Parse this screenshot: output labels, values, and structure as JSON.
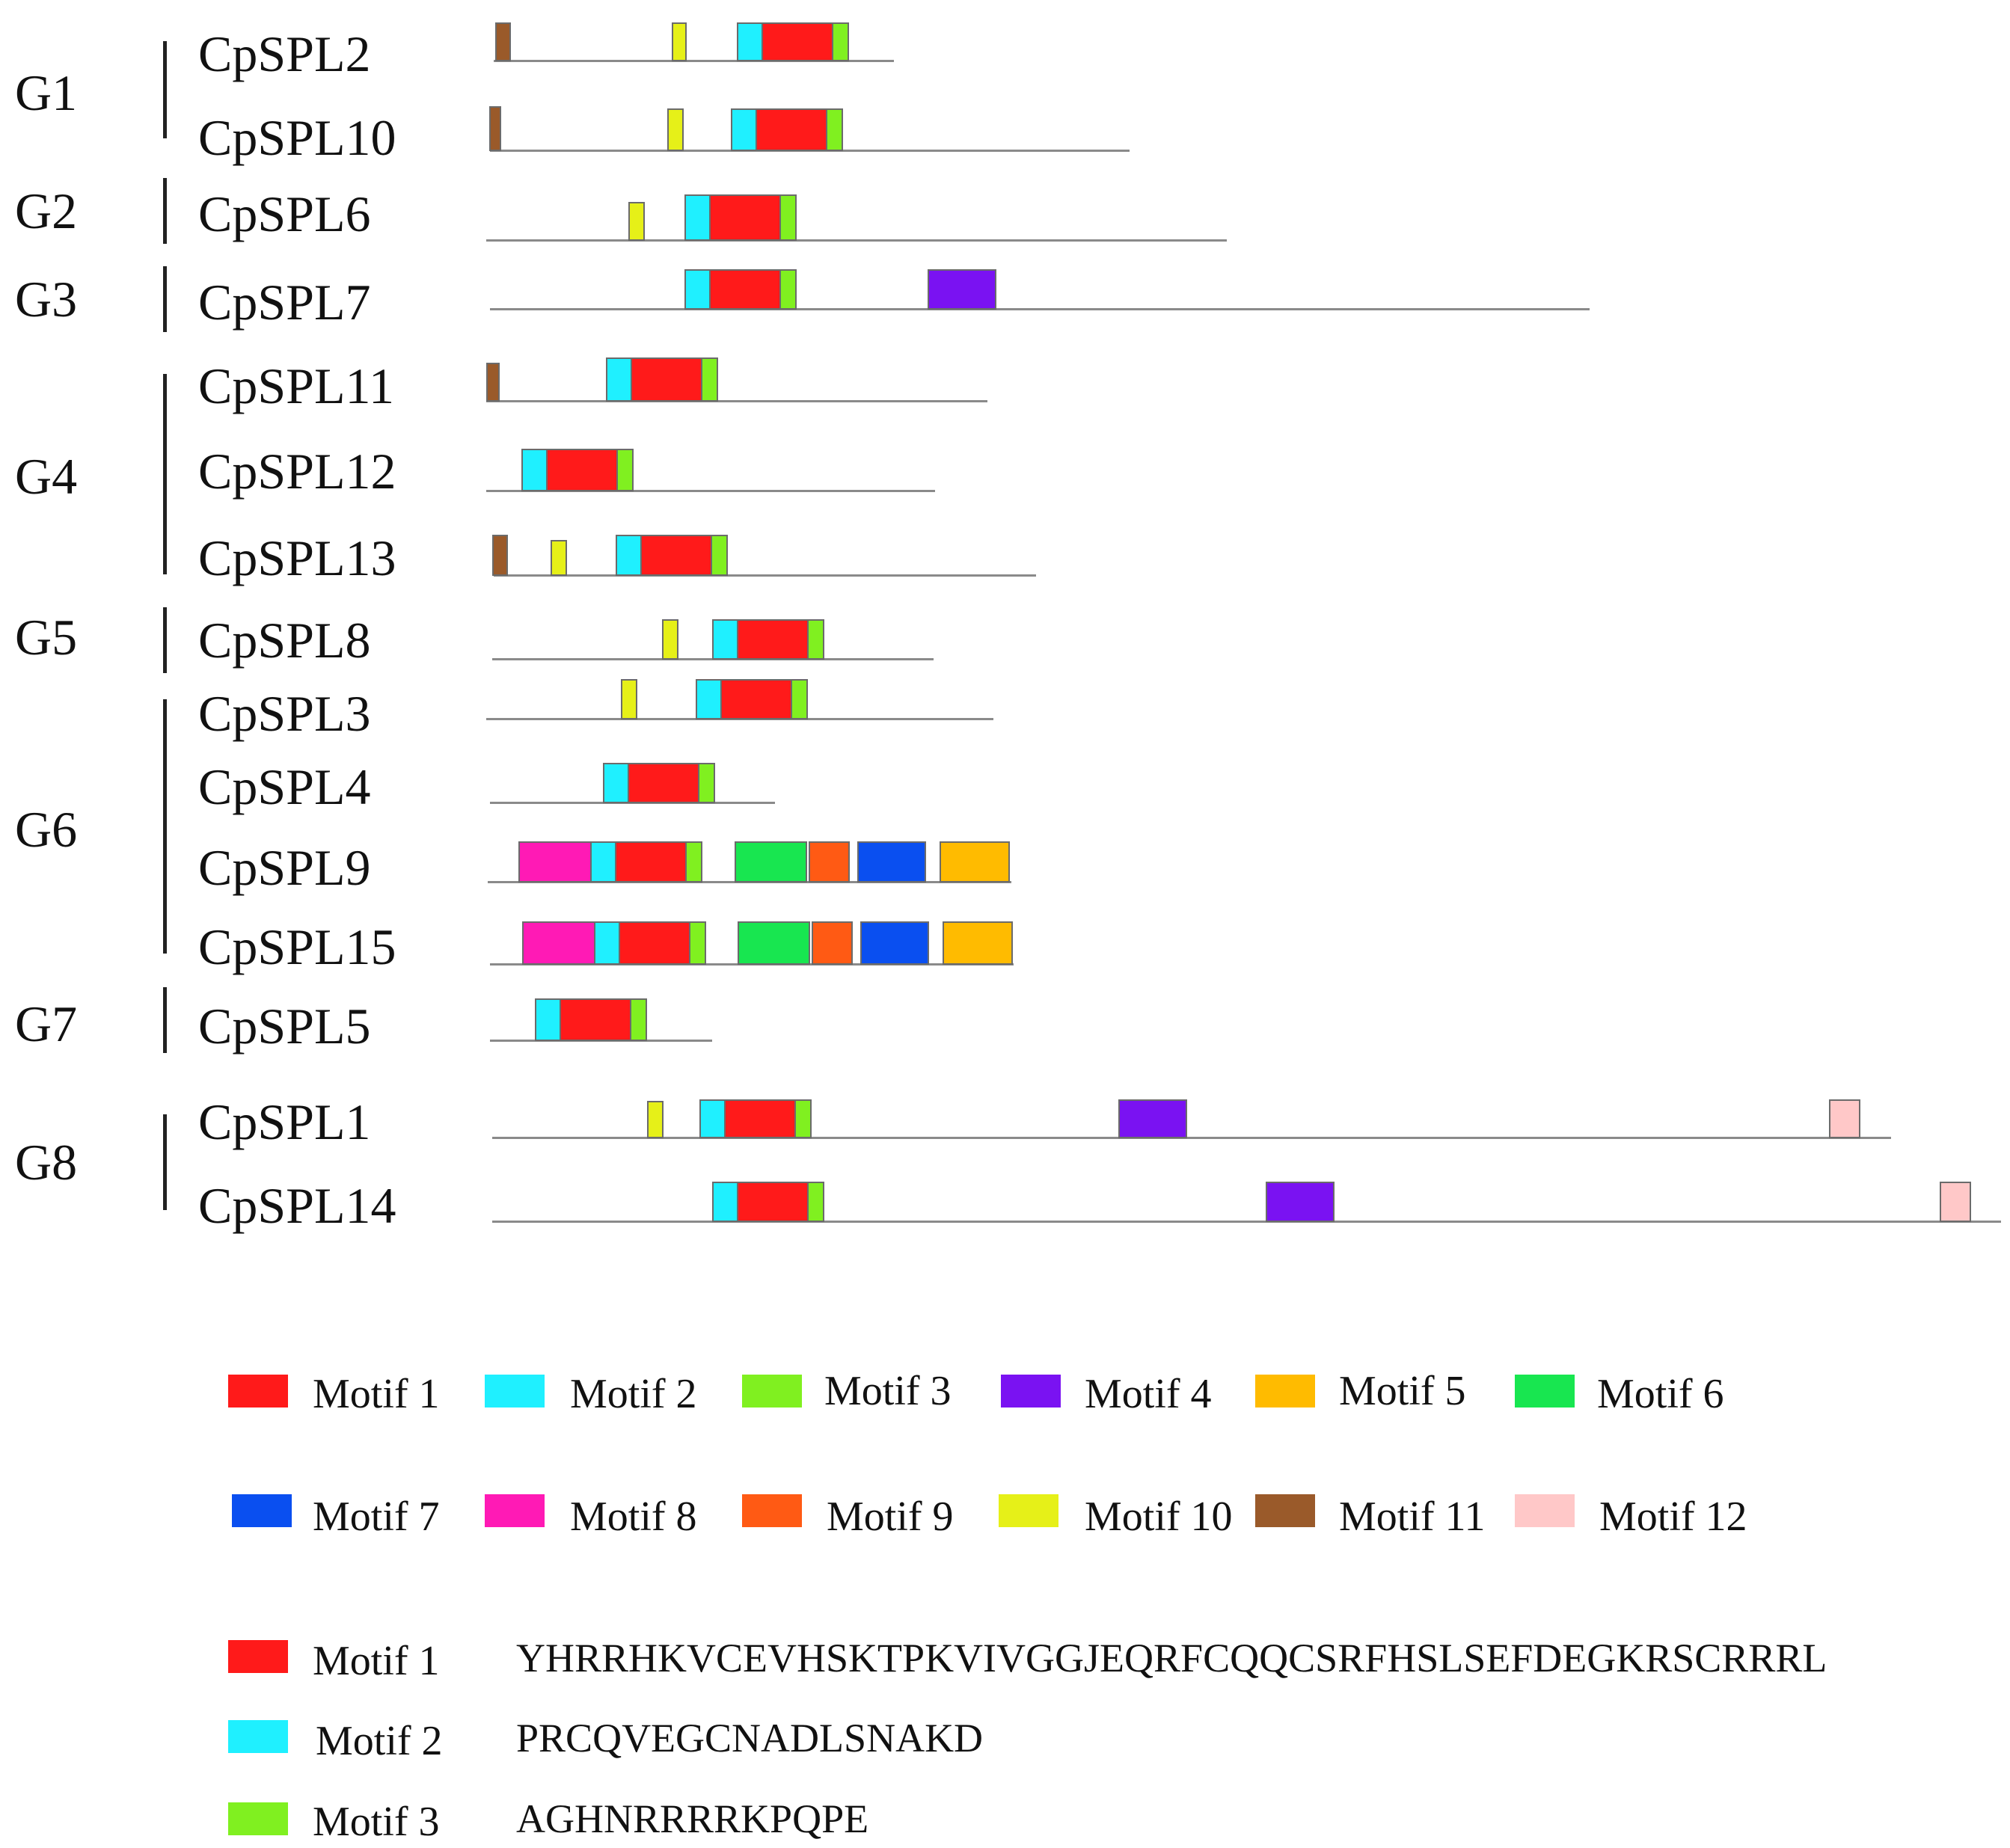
{
  "groups": [
    {
      "label": "G1",
      "genes": [
        "CpSPL2",
        "CpSPL10"
      ]
    },
    {
      "label": "G2",
      "genes": [
        "CpSPL6"
      ]
    },
    {
      "label": "G3",
      "genes": [
        "CpSPL7"
      ]
    },
    {
      "label": "G4",
      "genes": [
        "CpSPL11",
        "CpSPL12",
        "CpSPL13"
      ]
    },
    {
      "label": "G5",
      "genes": [
        "CpSPL8"
      ]
    },
    {
      "label": "G6",
      "genes": [
        "CpSPL3",
        "CpSPL4",
        "CpSPL9",
        "CpSPL15"
      ]
    },
    {
      "label": "G7",
      "genes": [
        "CpSPL5"
      ]
    },
    {
      "label": "G8",
      "genes": [
        "CpSPL1",
        "CpSPL14"
      ]
    }
  ],
  "motif_colors": {
    "1": "#ff1a1a",
    "2": "#1ff0ff",
    "3": "#80f020",
    "4": "#7a12f2",
    "5": "#ffbb00",
    "6": "#18e650",
    "7": "#0a4ff0",
    "8": "#ff1ab5",
    "9": "#ff5a14",
    "10": "#e6f018",
    "11": "#9a5a2a",
    "12": "#ffc8c8"
  },
  "legend": [
    {
      "motif": "1",
      "label": "Motif 1"
    },
    {
      "motif": "2",
      "label": "Motif 2"
    },
    {
      "motif": "3",
      "label": "Motif 3"
    },
    {
      "motif": "4",
      "label": "Motif 4"
    },
    {
      "motif": "5",
      "label": "Motif 5"
    },
    {
      "motif": "6",
      "label": "Motif 6"
    },
    {
      "motif": "7",
      "label": "Motif 7"
    },
    {
      "motif": "8",
      "label": "Motif 8"
    },
    {
      "motif": "9",
      "label": "Motif 9"
    },
    {
      "motif": "10",
      "label": "Motif 10"
    },
    {
      "motif": "11",
      "label": "Motif 11"
    },
    {
      "motif": "12",
      "label": "Motif 12"
    }
  ],
  "sequences": [
    {
      "motif": "1",
      "label": "Motif 1",
      "sequence": "YHRRHKVCEVHSKTPKVIVGGJEQRFCQQCSRFHSLSEFDEGKRSCRRRL"
    },
    {
      "motif": "2",
      "label": "Motif 2",
      "sequence": "PRCQVEGCNADLSNAKD"
    },
    {
      "motif": "3",
      "label": "Motif 3",
      "sequence": "AGHNRRRRKPQPE"
    }
  ]
}
